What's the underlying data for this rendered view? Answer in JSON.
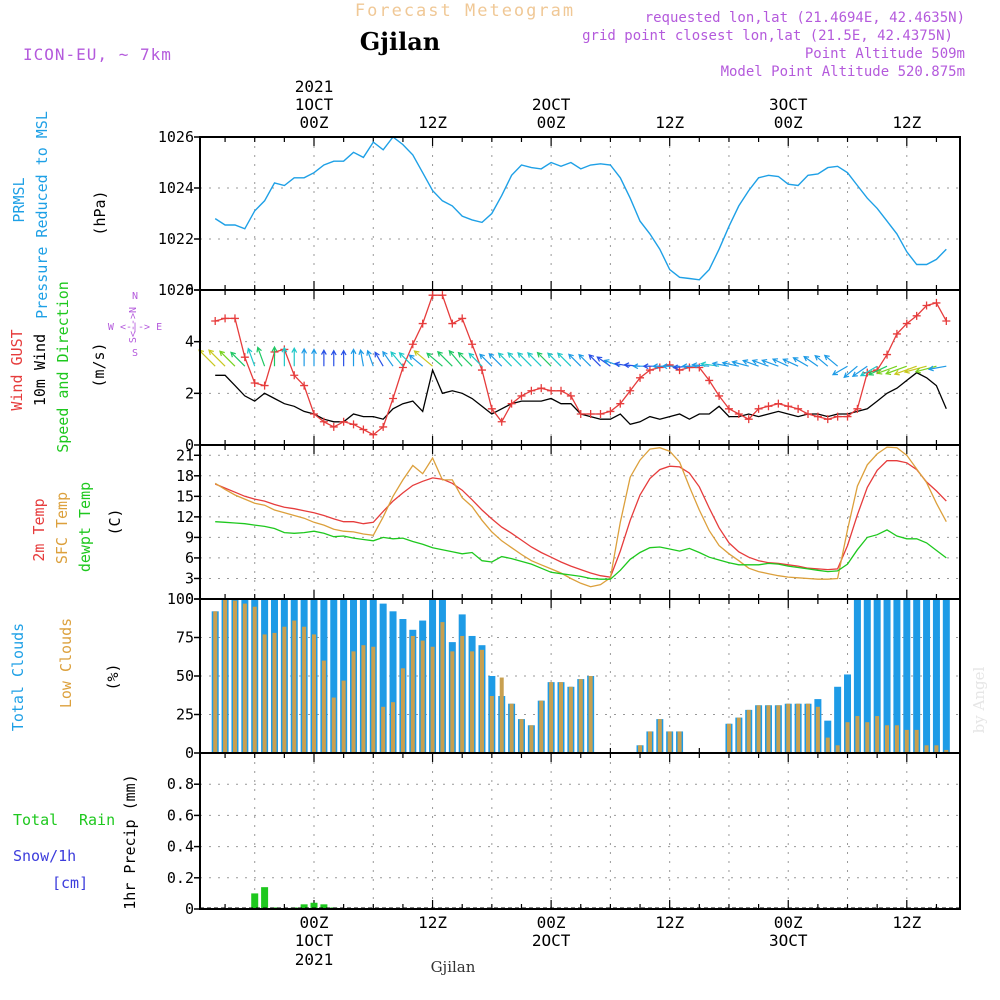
{
  "header": {
    "subtitle": "Forecast Meteogram",
    "location": "Gjilan",
    "model": "ICON-EU, ~ 7km",
    "requested": "requested lon,lat (21.4694E, 42.4635N)",
    "grid_point": "grid point closest lon,lat (21.5E, 42.4375N)",
    "point_altitude": "Point Altitude 509m",
    "model_altitude": "Model Point Altitude 520.875m",
    "credit": "by Angel",
    "footer_location": "Gjilan"
  },
  "time_axis": {
    "top_year": "2021",
    "labels": [
      {
        "t": 0,
        "line1": "1OCT",
        "line2": "00Z"
      },
      {
        "t": 12,
        "line1": "",
        "line2": "12Z"
      },
      {
        "t": 24,
        "line1": "2OCT",
        "line2": "00Z"
      },
      {
        "t": 36,
        "line1": "",
        "line2": "12Z"
      },
      {
        "t": 48,
        "line1": "3OCT",
        "line2": "00Z"
      },
      {
        "t": 60,
        "line1": "",
        "line2": "12Z"
      }
    ],
    "bottom_labels": [
      {
        "t": 0,
        "line1": "00Z",
        "line2": "1OCT",
        "line3": "2021"
      },
      {
        "t": 12,
        "line1": "12Z",
        "line2": "",
        "line3": ""
      },
      {
        "t": 24,
        "line1": "00Z",
        "line2": "2OCT",
        "line3": ""
      },
      {
        "t": 36,
        "line1": "12Z",
        "line2": "",
        "line3": ""
      },
      {
        "t": 48,
        "line1": "00Z",
        "line2": "3OCT",
        "line3": ""
      },
      {
        "t": 60,
        "line1": "12Z",
        "line2": "",
        "line3": ""
      }
    ]
  },
  "panel_labels": {
    "pressure": [
      "PRMSL",
      "Pressure Reduced to MSL",
      "(hPa)"
    ],
    "wind": [
      "Wind GUST",
      "10m Wind",
      "Speed and Direction",
      "(m/s)"
    ],
    "compass": [
      "N",
      "S",
      "W <-|-> E",
      "S<-->N"
    ],
    "temp": [
      "2m Temp",
      "SFC Temp",
      "dewpt Temp",
      "(C)"
    ],
    "clouds": [
      "Total Clouds",
      "Low Clouds",
      "(%)"
    ],
    "precip": [
      "Total",
      "Rain",
      "Snow/1h",
      "[cm]",
      "1hr Precip (mm)"
    ]
  },
  "colors": {
    "pressure": "#1ea0e6",
    "gust": "#e63c3c",
    "wind": "#000000",
    "temp2m": "#e63c3c",
    "sfc": "#dca03c",
    "dewpt": "#1ec81e",
    "total_clouds": "#1e9be6",
    "low_clouds": "#c8a050",
    "rain": "#1ec81e",
    "snow": "#3c3cdc",
    "title": "#f0c896",
    "purple": "#b45adc"
  },
  "chart_data": [
    {
      "type": "line",
      "title": "PRMSL Pressure Reduced to MSL",
      "ylabel": "(hPa)",
      "ylim": [
        1020,
        1026
      ],
      "yticks": [
        1020,
        1022,
        1024,
        1026
      ],
      "x": [
        -10,
        -9,
        -8,
        -7,
        -6,
        -5,
        -4,
        -3,
        -2,
        -1,
        0,
        1,
        2,
        3,
        4,
        5,
        6,
        7,
        8,
        9,
        10,
        11,
        12,
        13,
        14,
        15,
        16,
        17,
        18,
        19,
        20,
        21,
        22,
        23,
        24,
        25,
        26,
        27,
        28,
        29,
        30,
        31,
        32,
        33,
        34,
        35,
        36,
        37,
        38,
        39,
        40,
        41,
        42,
        43,
        44,
        45,
        46,
        47,
        48,
        49,
        50,
        51,
        52,
        53,
        54,
        55,
        56,
        57,
        58,
        59,
        60,
        61,
        62,
        63,
        64
      ],
      "series": [
        {
          "name": "PRMSL",
          "values": [
            1022.8,
            1022.55,
            1022.55,
            1022.4,
            1023.1,
            1023.5,
            1024.2,
            1024.1,
            1024.4,
            1024.4,
            1024.6,
            1024.9,
            1025.05,
            1025.05,
            1025.4,
            1025.2,
            1025.8,
            1025.5,
            1026.0,
            1025.7,
            1025.3,
            1024.6,
            1023.9,
            1023.5,
            1023.3,
            1022.9,
            1022.75,
            1022.65,
            1023.0,
            1023.7,
            1024.5,
            1024.9,
            1024.8,
            1024.75,
            1025.0,
            1024.85,
            1025.0,
            1024.75,
            1024.9,
            1024.95,
            1024.9,
            1024.4,
            1023.6,
            1022.7,
            1022.2,
            1021.6,
            1020.8,
            1020.5,
            1020.45,
            1020.4,
            1020.8,
            1021.6,
            1022.5,
            1023.3,
            1023.9,
            1024.4,
            1024.5,
            1024.45,
            1024.15,
            1024.1,
            1024.5,
            1024.55,
            1024.8,
            1024.85,
            1024.6,
            1024.1,
            1023.6,
            1023.2,
            1022.7,
            1022.2,
            1021.5,
            1021.0,
            1021.0,
            1021.2,
            1021.6
          ]
        }
      ]
    },
    {
      "type": "line",
      "title": "Wind GUST / 10m Wind Speed and Direction",
      "ylabel": "(m/s)",
      "ylim": [
        0,
        6
      ],
      "yticks": [
        0,
        2,
        4,
        6
      ],
      "x": [
        -10,
        -9,
        -8,
        -7,
        -6,
        -5,
        -4,
        -3,
        -2,
        -1,
        0,
        1,
        2,
        3,
        4,
        5,
        6,
        7,
        8,
        9,
        10,
        11,
        12,
        13,
        14,
        15,
        16,
        17,
        18,
        19,
        20,
        21,
        22,
        23,
        24,
        25,
        26,
        27,
        28,
        29,
        30,
        31,
        32,
        33,
        34,
        35,
        36,
        37,
        38,
        39,
        40,
        41,
        42,
        43,
        44,
        45,
        46,
        47,
        48,
        49,
        50,
        51,
        52,
        53,
        54,
        55,
        56,
        57,
        58,
        59,
        60,
        61,
        62,
        63,
        64
      ],
      "series": [
        {
          "name": "Wind GUST",
          "values": [
            4.8,
            4.9,
            4.9,
            3.4,
            2.4,
            2.3,
            3.6,
            3.7,
            2.7,
            2.3,
            1.2,
            0.9,
            0.7,
            0.9,
            0.8,
            0.6,
            0.4,
            0.7,
            1.8,
            3.0,
            3.9,
            4.7,
            5.8,
            5.8,
            4.7,
            4.9,
            3.9,
            2.9,
            1.4,
            0.9,
            1.6,
            1.9,
            2.1,
            2.2,
            2.1,
            2.1,
            1.9,
            1.2,
            1.2,
            1.2,
            1.3,
            1.6,
            2.1,
            2.6,
            2.9,
            3.0,
            3.1,
            2.9,
            3.0,
            3.0,
            2.5,
            1.9,
            1.4,
            1.2,
            1.0,
            1.4,
            1.5,
            1.6,
            1.5,
            1.4,
            1.2,
            1.1,
            1.0,
            1.1,
            1.1,
            1.4,
            2.8,
            2.9,
            3.5,
            4.3,
            4.7,
            5.0,
            5.4,
            5.5,
            4.8
          ]
        },
        {
          "name": "10m Wind",
          "values": [
            2.7,
            2.7,
            2.3,
            1.9,
            1.7,
            2.0,
            1.8,
            1.6,
            1.5,
            1.3,
            1.2,
            1.0,
            0.9,
            0.9,
            1.2,
            1.1,
            1.1,
            1.0,
            1.4,
            1.6,
            1.7,
            1.3,
            2.9,
            2.0,
            2.1,
            2.0,
            1.8,
            1.5,
            1.2,
            1.4,
            1.6,
            1.7,
            1.7,
            1.7,
            1.8,
            1.6,
            1.6,
            1.2,
            1.1,
            1.0,
            1.0,
            1.2,
            0.8,
            0.9,
            1.1,
            1.0,
            1.1,
            1.2,
            1.0,
            1.2,
            1.2,
            1.5,
            1.1,
            1.1,
            1.2,
            1.1,
            1.2,
            1.3,
            1.2,
            1.1,
            1.2,
            1.2,
            1.1,
            1.2,
            1.2,
            1.3,
            1.4,
            1.7,
            2.0,
            2.2,
            2.5,
            2.8,
            2.6,
            2.3,
            1.4
          ]
        }
      ],
      "wind_direction_arrows": "arrows along upper band indicating direction, colored by speed"
    },
    {
      "type": "line",
      "title": "Temperatures",
      "ylabel": "(C)",
      "ylim": [
        0,
        22.5
      ],
      "yticks": [
        0,
        3,
        6,
        9,
        12,
        15,
        18,
        21
      ],
      "x": [
        -10,
        -9,
        -8,
        -7,
        -6,
        -5,
        -4,
        -3,
        -2,
        -1,
        0,
        1,
        2,
        3,
        4,
        5,
        6,
        7,
        8,
        9,
        10,
        11,
        12,
        13,
        14,
        15,
        16,
        17,
        18,
        19,
        20,
        21,
        22,
        23,
        24,
        25,
        26,
        27,
        28,
        29,
        30,
        31,
        32,
        33,
        34,
        35,
        36,
        37,
        38,
        39,
        40,
        41,
        42,
        43,
        44,
        45,
        46,
        47,
        48,
        49,
        50,
        51,
        52,
        53,
        54,
        55,
        56,
        57,
        58,
        59,
        60,
        61,
        62,
        63,
        64
      ],
      "series": [
        {
          "name": "2m Temp",
          "values": [
            16.8,
            16.2,
            15.6,
            15.0,
            14.6,
            14.3,
            13.8,
            13.4,
            13.2,
            12.9,
            12.6,
            12.2,
            11.7,
            11.3,
            11.3,
            11.0,
            11.2,
            12.8,
            14.3,
            15.5,
            16.6,
            17.2,
            17.7,
            17.5,
            16.9,
            15.9,
            14.5,
            13.0,
            11.7,
            10.5,
            9.6,
            8.6,
            7.6,
            6.8,
            6.1,
            5.4,
            4.8,
            4.3,
            3.8,
            3.4,
            3.2,
            7.0,
            11.5,
            15.2,
            17.6,
            18.9,
            19.4,
            19.3,
            18.4,
            16.4,
            13.3,
            10.4,
            8.2,
            6.9,
            6.1,
            5.6,
            5.3,
            5.2,
            5.0,
            4.8,
            4.5,
            4.4,
            4.3,
            4.4,
            7.8,
            12.3,
            16.3,
            18.8,
            20.2,
            20.2,
            19.9,
            18.9,
            17.1,
            15.8,
            14.3
          ]
        },
        {
          "name": "SFC Temp",
          "values": [
            16.9,
            16.0,
            15.2,
            14.6,
            14.0,
            13.7,
            13.0,
            12.6,
            12.2,
            11.8,
            11.2,
            10.8,
            10.2,
            9.9,
            9.8,
            9.5,
            9.3,
            12.0,
            15.0,
            17.4,
            19.5,
            18.3,
            20.6,
            17.4,
            17.4,
            14.8,
            13.5,
            11.5,
            9.8,
            8.5,
            7.5,
            6.5,
            5.6,
            5.0,
            4.4,
            3.8,
            3.0,
            2.3,
            1.8,
            2.1,
            3.1,
            11.2,
            17.8,
            20.3,
            21.9,
            22.1,
            21.6,
            20.0,
            16.4,
            13.0,
            10.0,
            7.8,
            6.6,
            5.6,
            4.5,
            4.0,
            3.7,
            3.4,
            3.2,
            3.1,
            3.0,
            2.9,
            2.9,
            3.0,
            10.1,
            16.5,
            19.6,
            21.2,
            22.2,
            22.1,
            21.0,
            19.0,
            17.0,
            14.0,
            11.3
          ]
        },
        {
          "name": "dewpt Temp",
          "values": [
            11.3,
            11.2,
            11.1,
            11.0,
            10.8,
            10.6,
            10.3,
            9.7,
            9.6,
            9.7,
            9.9,
            9.6,
            9.1,
            9.2,
            8.9,
            8.7,
            8.5,
            9.0,
            8.8,
            8.9,
            8.4,
            8.0,
            7.5,
            7.2,
            6.9,
            6.6,
            6.8,
            5.6,
            5.4,
            6.2,
            5.9,
            5.5,
            5.1,
            4.5,
            3.9,
            3.7,
            3.5,
            3.3,
            3.0,
            2.9,
            2.9,
            4.2,
            5.8,
            6.8,
            7.5,
            7.6,
            7.3,
            7.0,
            7.4,
            6.8,
            6.1,
            5.7,
            5.3,
            5.0,
            5.0,
            5.0,
            5.2,
            5.1,
            4.8,
            4.6,
            4.4,
            4.2,
            4.0,
            4.1,
            5.1,
            7.2,
            9.0,
            9.4,
            10.1,
            9.2,
            8.8,
            8.8,
            8.2,
            7.1,
            6.0
          ]
        }
      ]
    },
    {
      "type": "bar",
      "title": "Clouds",
      "ylabel": "(%)",
      "ylim": [
        0,
        100
      ],
      "yticks": [
        0,
        25,
        50,
        75,
        100
      ],
      "x": [
        -10,
        -9,
        -8,
        -7,
        -6,
        -5,
        -4,
        -3,
        -2,
        -1,
        0,
        1,
        2,
        3,
        4,
        5,
        6,
        7,
        8,
        9,
        10,
        11,
        12,
        13,
        14,
        15,
        16,
        17,
        18,
        19,
        20,
        21,
        22,
        23,
        24,
        25,
        26,
        27,
        28,
        29,
        30,
        31,
        32,
        33,
        34,
        35,
        36,
        37,
        38,
        39,
        40,
        41,
        42,
        43,
        44,
        45,
        46,
        47,
        48,
        49,
        50,
        51,
        52,
        53,
        54,
        55,
        56,
        57,
        58,
        59,
        60,
        61,
        62,
        63,
        64
      ],
      "series": [
        {
          "name": "Total Clouds",
          "values": [
            92,
            100,
            100,
            100,
            100,
            100,
            100,
            100,
            100,
            100,
            100,
            100,
            100,
            100,
            100,
            100,
            100,
            97,
            92,
            87,
            80,
            86,
            100,
            100,
            72,
            90,
            76,
            70,
            50,
            37,
            32,
            22,
            18,
            34,
            46,
            46,
            43,
            48,
            50,
            0,
            0,
            0,
            0,
            5,
            14,
            22,
            14,
            14,
            0,
            0,
            0,
            0,
            19,
            23,
            28,
            31,
            31,
            31,
            32,
            32,
            32,
            35,
            21,
            43,
            51,
            100,
            100,
            100,
            100,
            100,
            100,
            100,
            100,
            100,
            100
          ]
        },
        {
          "name": "Low Clouds",
          "values": [
            92,
            100,
            99,
            97,
            95,
            77,
            78,
            82,
            86,
            82,
            77,
            60,
            36,
            47,
            66,
            70,
            69,
            30,
            33,
            55,
            76,
            73,
            69,
            85,
            66,
            76,
            66,
            67,
            37,
            49,
            32,
            22,
            18,
            34,
            46,
            46,
            43,
            48,
            50,
            0,
            0,
            0,
            0,
            5,
            14,
            22,
            14,
            14,
            0,
            0,
            0,
            0,
            19,
            23,
            28,
            31,
            31,
            31,
            32,
            32,
            32,
            30,
            10,
            5,
            20,
            24,
            20,
            24,
            18,
            18,
            15,
            15,
            5,
            5,
            2
          ]
        }
      ]
    },
    {
      "type": "bar",
      "title": "1hr Precip (mm)",
      "ylabel": "1hr Precip (mm)",
      "ylim": [
        0,
        1.0
      ],
      "yticks": [
        0,
        0.2,
        0.4,
        0.6,
        0.8
      ],
      "x": [
        -6,
        -5,
        -4,
        -2,
        -1,
        0,
        1,
        2
      ],
      "series": [
        {
          "name": "Total Rain",
          "values": [
            0.1,
            0.14,
            0.01,
            0.01,
            0.03,
            0.04,
            0.03,
            0.01
          ]
        },
        {
          "name": "Snow/1h",
          "values": [
            0,
            0,
            0,
            0,
            0,
            0,
            0,
            0
          ]
        }
      ]
    }
  ]
}
